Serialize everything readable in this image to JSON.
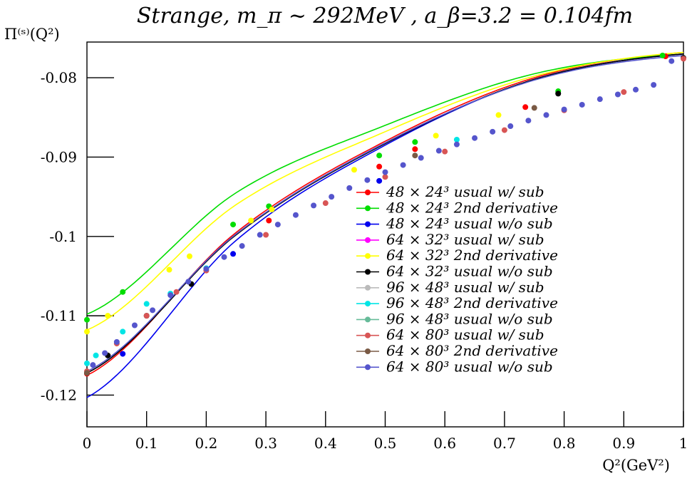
{
  "chart_data": {
    "type": "scatter",
    "title": "Strange,  m_π ~ 292MeV  , a_β=3.2 = 0.104fm",
    "xlabel": "Q²(GeV²)",
    "ylabel": "Π⁽ˢ⁾(Q²)",
    "xlim": [
      0,
      1
    ],
    "ylim": [
      -0.124,
      -0.0755
    ],
    "xticks": [
      0,
      0.1,
      0.2,
      0.3,
      0.4,
      0.5,
      0.6,
      0.7,
      0.8,
      0.9,
      1
    ],
    "xtick_labels": [
      "0",
      "0.1",
      "0.2",
      "0.3",
      "0.4",
      "0.5",
      "0.6",
      "0.7",
      "0.8",
      "0.9",
      "1"
    ],
    "yticks": [
      -0.08,
      -0.09,
      -0.1,
      -0.11,
      -0.12
    ],
    "ytick_labels": [
      "-0.08",
      "-0.09",
      "-0.1",
      "-0.11",
      "-0.12"
    ],
    "grid": false,
    "legend_position": "bottom-right",
    "series": [
      {
        "name": "48 × 24³ usual w/ sub",
        "color": "#ff0000",
        "x": [
          0.0,
          0.305,
          0.49,
          0.55,
          0.735,
          0.97
        ],
        "y": [
          -0.1173,
          -0.098,
          -0.0912,
          -0.089,
          -0.0837,
          -0.0773
        ],
        "fit": [
          -0.1175,
          -0.0995,
          -0.088,
          -0.08,
          -0.0768
        ]
      },
      {
        "name": "48 × 24³ 2nd derivative",
        "color": "#00dd00",
        "x": [
          0.0,
          0.06,
          0.245,
          0.305,
          0.49,
          0.55,
          0.79,
          0.965
        ],
        "y": [
          -0.1105,
          -0.107,
          -0.0985,
          -0.0962,
          -0.0898,
          -0.0881,
          -0.0817,
          -0.0772
        ],
        "fit": [
          -0.1098,
          -0.0945,
          -0.086,
          -0.0795,
          -0.077
        ]
      },
      {
        "name": "48 × 24³ usual w/o sub",
        "color": "#0000ee",
        "x": [
          0.06,
          0.245,
          0.49
        ],
        "y": [
          -0.1148,
          -0.1022,
          -0.093
        ],
        "fit": [
          -0.1203,
          -0.1005,
          -0.0885,
          -0.0802,
          -0.077
        ]
      },
      {
        "name": "64 × 32³ usual w/ sub",
        "color": "#ff00ff",
        "x": [],
        "y": [],
        "fit": []
      },
      {
        "name": "64 × 32³ 2nd derivative",
        "color": "#ffff00",
        "x": [
          0.0,
          0.035,
          0.138,
          0.172,
          0.275,
          0.31,
          0.448,
          0.585,
          0.69
        ],
        "y": [
          -0.112,
          -0.11,
          -0.1042,
          -0.1025,
          -0.098,
          -0.0966,
          -0.0916,
          -0.0873,
          -0.0847
        ],
        "fit": [
          -0.1118,
          -0.096,
          -0.0868,
          -0.0798,
          -0.0768
        ]
      },
      {
        "name": "64 × 32³ usual w/o sub",
        "color": "#000000",
        "x": [
          0.0,
          0.035,
          0.1,
          0.175,
          0.79,
          1.0
        ],
        "y": [
          -0.1172,
          -0.115,
          -0.11,
          -0.106,
          -0.082,
          -0.0775
        ],
        "fit": [
          -0.1172,
          -0.0998,
          -0.0883,
          -0.0802,
          -0.077
        ]
      },
      {
        "name": "96 × 48³ usual w/ sub",
        "color": "#bbbbbb",
        "x": [],
        "y": [],
        "fit": []
      },
      {
        "name": "96 × 48³ 2nd derivative",
        "color": "#00e5e5",
        "x": [
          0.0,
          0.015,
          0.06,
          0.1,
          0.14,
          0.2,
          0.62
        ],
        "y": [
          -0.116,
          -0.115,
          -0.112,
          -0.1085,
          -0.1072,
          -0.104,
          -0.0878
        ],
        "fit": []
      },
      {
        "name": "96 × 48³ usual w/o sub",
        "color": "#66bb99",
        "x": [],
        "y": [],
        "fit": []
      },
      {
        "name": "64 × 80³ usual w/ sub",
        "color": "#d85555",
        "x": [
          0.0,
          0.05,
          0.1,
          0.15,
          0.2,
          0.3,
          0.4,
          0.5,
          0.6,
          0.7,
          0.8,
          0.9,
          1.0
        ],
        "y": [
          -0.117,
          -0.1135,
          -0.11,
          -0.107,
          -0.1043,
          -0.0998,
          -0.0958,
          -0.0925,
          -0.0893,
          -0.0866,
          -0.0841,
          -0.0818,
          -0.0776
        ],
        "fit": []
      },
      {
        "name": "64 × 80³ 2nd derivative",
        "color": "#7a5a45",
        "x": [
          0.0,
          0.55,
          0.75
        ],
        "y": [
          -0.1172,
          -0.0898,
          -0.0838
        ],
        "fit": []
      },
      {
        "name": "64 × 80³ usual w/o sub",
        "color": "#5555cc",
        "x": [
          0.01,
          0.03,
          0.05,
          0.08,
          0.11,
          0.14,
          0.17,
          0.2,
          0.23,
          0.26,
          0.29,
          0.32,
          0.35,
          0.38,
          0.41,
          0.44,
          0.47,
          0.5,
          0.53,
          0.56,
          0.59,
          0.62,
          0.65,
          0.68,
          0.71,
          0.74,
          0.77,
          0.8,
          0.83,
          0.86,
          0.89,
          0.92,
          0.95,
          0.98
        ],
        "y": [
          -0.1162,
          -0.1147,
          -0.1133,
          -0.1112,
          -0.1093,
          -0.1074,
          -0.1057,
          -0.1041,
          -0.1026,
          -0.1012,
          -0.0998,
          -0.0985,
          -0.0973,
          -0.0961,
          -0.095,
          -0.0939,
          -0.0929,
          -0.0919,
          -0.091,
          -0.0901,
          -0.0892,
          -0.0884,
          -0.0876,
          -0.0868,
          -0.0861,
          -0.0854,
          -0.0847,
          -0.084,
          -0.0834,
          -0.0827,
          -0.0821,
          -0.0815,
          -0.0809,
          -0.0779
        ],
        "fit": [
          -0.117,
          -0.0997,
          -0.0882,
          -0.0803,
          -0.0772
        ]
      }
    ]
  }
}
